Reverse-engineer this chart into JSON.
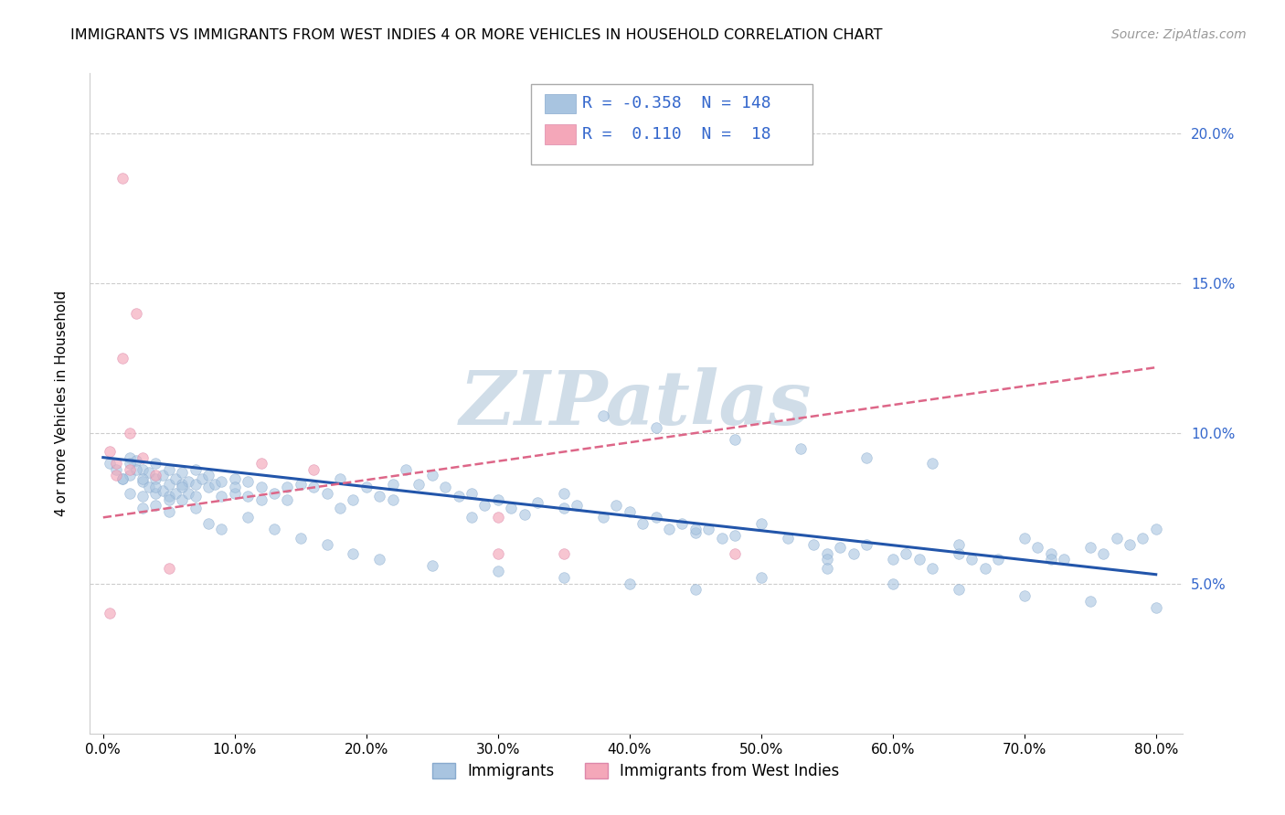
{
  "title": "IMMIGRANTS VS IMMIGRANTS FROM WEST INDIES 4 OR MORE VEHICLES IN HOUSEHOLD CORRELATION CHART",
  "source": "Source: ZipAtlas.com",
  "ylabel": "4 or more Vehicles in Household",
  "xlim": [
    -0.01,
    0.82
  ],
  "ylim": [
    0.0,
    0.22
  ],
  "xticks": [
    0.0,
    0.1,
    0.2,
    0.3,
    0.4,
    0.5,
    0.6,
    0.7,
    0.8
  ],
  "yticks": [
    0.05,
    0.1,
    0.15,
    0.2
  ],
  "ytick_labels": [
    "5.0%",
    "10.0%",
    "15.0%",
    "20.0%"
  ],
  "xtick_labels": [
    "0.0%",
    "10.0%",
    "20.0%",
    "30.0%",
    "40.0%",
    "50.0%",
    "60.0%",
    "70.0%",
    "80.0%"
  ],
  "blue_R": "-0.358",
  "blue_N": "148",
  "pink_R": "0.110",
  "pink_N": "18",
  "blue_color": "#a8c4e0",
  "pink_color": "#f4a7b9",
  "blue_line_color": "#2255aa",
  "pink_line_color": "#dd6688",
  "watermark": "ZIPatlas",
  "watermark_color": "#d0dde8",
  "legend_label_blue": "Immigrants",
  "legend_label_pink": "Immigrants from West Indies",
  "blue_scatter_x": [
    0.005,
    0.01,
    0.015,
    0.02,
    0.02,
    0.02,
    0.025,
    0.03,
    0.03,
    0.03,
    0.03,
    0.035,
    0.035,
    0.04,
    0.04,
    0.04,
    0.04,
    0.045,
    0.045,
    0.05,
    0.05,
    0.05,
    0.05,
    0.055,
    0.055,
    0.06,
    0.06,
    0.06,
    0.065,
    0.065,
    0.07,
    0.07,
    0.07,
    0.075,
    0.08,
    0.08,
    0.085,
    0.09,
    0.09,
    0.1,
    0.1,
    0.11,
    0.11,
    0.12,
    0.12,
    0.13,
    0.14,
    0.15,
    0.16,
    0.17,
    0.18,
    0.19,
    0.2,
    0.21,
    0.22,
    0.23,
    0.24,
    0.25,
    0.26,
    0.27,
    0.28,
    0.29,
    0.3,
    0.31,
    0.32,
    0.33,
    0.35,
    0.36,
    0.38,
    0.39,
    0.4,
    0.41,
    0.42,
    0.43,
    0.44,
    0.45,
    0.46,
    0.47,
    0.48,
    0.5,
    0.52,
    0.54,
    0.55,
    0.56,
    0.57,
    0.58,
    0.6,
    0.61,
    0.62,
    0.63,
    0.65,
    0.66,
    0.67,
    0.68,
    0.7,
    0.71,
    0.72,
    0.73,
    0.75,
    0.76,
    0.77,
    0.78,
    0.79,
    0.8,
    0.72,
    0.65,
    0.55,
    0.45,
    0.35,
    0.28,
    0.22,
    0.18,
    0.14,
    0.1,
    0.07,
    0.05,
    0.04,
    0.03,
    0.025,
    0.02,
    0.015,
    0.06,
    0.08,
    0.09,
    0.11,
    0.13,
    0.15,
    0.17,
    0.19,
    0.21,
    0.25,
    0.3,
    0.35,
    0.4,
    0.45,
    0.5,
    0.55,
    0.6,
    0.65,
    0.7,
    0.75,
    0.8,
    0.38,
    0.42,
    0.48,
    0.53,
    0.58,
    0.63
  ],
  "blue_scatter_y": [
    0.09,
    0.088,
    0.085,
    0.092,
    0.086,
    0.08,
    0.091,
    0.088,
    0.084,
    0.079,
    0.075,
    0.087,
    0.082,
    0.09,
    0.085,
    0.08,
    0.076,
    0.086,
    0.081,
    0.088,
    0.083,
    0.079,
    0.074,
    0.085,
    0.08,
    0.087,
    0.083,
    0.078,
    0.084,
    0.08,
    0.088,
    0.083,
    0.079,
    0.085,
    0.086,
    0.082,
    0.083,
    0.084,
    0.079,
    0.085,
    0.08,
    0.084,
    0.079,
    0.082,
    0.078,
    0.08,
    0.082,
    0.083,
    0.082,
    0.08,
    0.085,
    0.078,
    0.082,
    0.079,
    0.083,
    0.088,
    0.083,
    0.086,
    0.082,
    0.079,
    0.08,
    0.076,
    0.078,
    0.075,
    0.073,
    0.077,
    0.08,
    0.076,
    0.072,
    0.076,
    0.074,
    0.07,
    0.072,
    0.068,
    0.07,
    0.067,
    0.068,
    0.065,
    0.066,
    0.07,
    0.065,
    0.063,
    0.06,
    0.062,
    0.06,
    0.063,
    0.058,
    0.06,
    0.058,
    0.055,
    0.06,
    0.058,
    0.055,
    0.058,
    0.065,
    0.062,
    0.06,
    0.058,
    0.062,
    0.06,
    0.065,
    0.063,
    0.065,
    0.068,
    0.058,
    0.063,
    0.058,
    0.068,
    0.075,
    0.072,
    0.078,
    0.075,
    0.078,
    0.082,
    0.075,
    0.078,
    0.082,
    0.085,
    0.088,
    0.09,
    0.085,
    0.082,
    0.07,
    0.068,
    0.072,
    0.068,
    0.065,
    0.063,
    0.06,
    0.058,
    0.056,
    0.054,
    0.052,
    0.05,
    0.048,
    0.052,
    0.055,
    0.05,
    0.048,
    0.046,
    0.044,
    0.042,
    0.106,
    0.102,
    0.098,
    0.095,
    0.092,
    0.09
  ],
  "pink_scatter_x": [
    0.005,
    0.01,
    0.01,
    0.015,
    0.015,
    0.02,
    0.02,
    0.025,
    0.03,
    0.04,
    0.05,
    0.12,
    0.16,
    0.3,
    0.3,
    0.35,
    0.48,
    0.005
  ],
  "pink_scatter_y": [
    0.094,
    0.09,
    0.086,
    0.185,
    0.125,
    0.088,
    0.1,
    0.14,
    0.092,
    0.086,
    0.055,
    0.09,
    0.088,
    0.072,
    0.06,
    0.06,
    0.06,
    0.04
  ],
  "blue_trend_x": [
    0.0,
    0.8
  ],
  "blue_trend_y": [
    0.092,
    0.053
  ],
  "pink_trend_x": [
    0.0,
    0.8
  ],
  "pink_trend_y": [
    0.072,
    0.122
  ]
}
